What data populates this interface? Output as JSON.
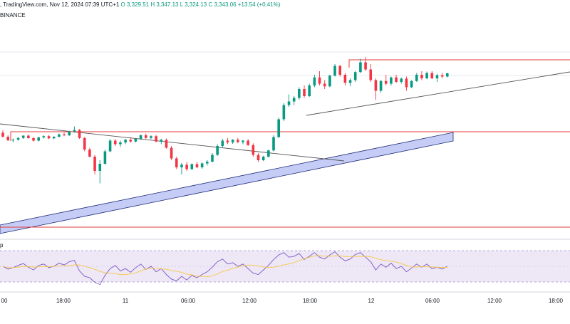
{
  "header": {
    "source": ", TradingView.com, Nov 12, 2024 07:39 UTC+1",
    "open": "O 3,329.51",
    "high": "H 3,347.13",
    "low": "L 3,324.13",
    "close": "C 3,343.06",
    "change": "+13.54 (+0.41%)",
    "exchange": "BINANCE"
  },
  "rsi_label": "p",
  "time_axis": {
    "labels": [
      "00",
      "18:00",
      "11",
      "06:00",
      "12:00",
      "18:00",
      "12",
      "06:00",
      "12:00",
      "18:00"
    ]
  },
  "colors": {
    "up": "#089981",
    "down": "#f23645",
    "zone_line": "#e03b3b",
    "channel_fill": "#c5cdf6",
    "rsi_band": "#ede7f6",
    "rsi_line": "#7e57c2",
    "rsi_ma": "#f7c948",
    "trend_line": "#555555"
  },
  "chart_data": {
    "type": "candlestick",
    "symbol_exchange": "BINANCE",
    "x_labels": [
      "00",
      "18:00",
      "11",
      "06:00",
      "12:00",
      "18:00",
      "12",
      "06:00",
      "12:00",
      "18:00"
    ],
    "candles": [
      [
        0,
        0.535,
        0.548,
        0.508,
        0.512
      ],
      [
        1,
        0.512,
        0.52,
        0.488,
        0.492
      ],
      [
        2,
        0.492,
        0.502,
        0.48,
        0.495
      ],
      [
        3,
        0.495,
        0.51,
        0.49,
        0.505
      ],
      [
        4,
        0.505,
        0.52,
        0.5,
        0.518
      ],
      [
        5,
        0.518,
        0.525,
        0.5,
        0.504
      ],
      [
        6,
        0.504,
        0.51,
        0.485,
        0.49
      ],
      [
        7,
        0.49,
        0.512,
        0.486,
        0.508
      ],
      [
        8,
        0.508,
        0.52,
        0.502,
        0.515
      ],
      [
        9,
        0.515,
        0.522,
        0.498,
        0.503
      ],
      [
        10,
        0.503,
        0.515,
        0.498,
        0.512
      ],
      [
        11,
        0.512,
        0.53,
        0.508,
        0.525
      ],
      [
        12,
        0.525,
        0.535,
        0.515,
        0.52
      ],
      [
        13,
        0.52,
        0.545,
        0.516,
        0.54
      ],
      [
        14,
        0.54,
        0.57,
        0.535,
        0.55
      ],
      [
        15,
        0.55,
        0.555,
        0.5,
        0.505
      ],
      [
        16,
        0.505,
        0.51,
        0.43,
        0.44
      ],
      [
        17,
        0.44,
        0.45,
        0.395,
        0.4
      ],
      [
        18,
        0.4,
        0.41,
        0.3,
        0.32
      ],
      [
        19,
        0.32,
        0.38,
        0.25,
        0.36
      ],
      [
        20,
        0.36,
        0.44,
        0.355,
        0.43
      ],
      [
        21,
        0.43,
        0.5,
        0.425,
        0.49
      ],
      [
        22,
        0.49,
        0.5,
        0.46,
        0.47
      ],
      [
        23,
        0.47,
        0.49,
        0.455,
        0.48
      ],
      [
        24,
        0.48,
        0.5,
        0.47,
        0.495
      ],
      [
        25,
        0.495,
        0.51,
        0.478,
        0.485
      ],
      [
        26,
        0.485,
        0.505,
        0.48,
        0.5
      ],
      [
        27,
        0.5,
        0.525,
        0.495,
        0.52
      ],
      [
        28,
        0.52,
        0.53,
        0.5,
        0.505
      ],
      [
        29,
        0.505,
        0.52,
        0.498,
        0.515
      ],
      [
        30,
        0.515,
        0.522,
        0.48,
        0.485
      ],
      [
        31,
        0.485,
        0.5,
        0.47,
        0.495
      ],
      [
        32,
        0.495,
        0.502,
        0.445,
        0.45
      ],
      [
        33,
        0.45,
        0.46,
        0.38,
        0.39
      ],
      [
        34,
        0.39,
        0.4,
        0.33,
        0.34
      ],
      [
        35,
        0.34,
        0.365,
        0.3,
        0.355
      ],
      [
        36,
        0.355,
        0.37,
        0.32,
        0.33
      ],
      [
        37,
        0.33,
        0.362,
        0.325,
        0.358
      ],
      [
        38,
        0.358,
        0.372,
        0.335,
        0.34
      ],
      [
        39,
        0.34,
        0.368,
        0.332,
        0.362
      ],
      [
        40,
        0.362,
        0.38,
        0.35,
        0.372
      ],
      [
        41,
        0.372,
        0.42,
        0.368,
        0.41
      ],
      [
        42,
        0.41,
        0.47,
        0.405,
        0.46
      ],
      [
        43,
        0.46,
        0.5,
        0.45,
        0.49
      ],
      [
        44,
        0.49,
        0.505,
        0.47,
        0.48
      ],
      [
        45,
        0.48,
        0.498,
        0.472,
        0.495
      ],
      [
        46,
        0.495,
        0.505,
        0.475,
        0.482
      ],
      [
        47,
        0.482,
        0.495,
        0.47,
        0.49
      ],
      [
        48,
        0.49,
        0.5,
        0.46,
        0.465
      ],
      [
        49,
        0.465,
        0.475,
        0.4,
        0.41
      ],
      [
        50,
        0.41,
        0.42,
        0.37,
        0.38
      ],
      [
        51,
        0.38,
        0.405,
        0.375,
        0.4
      ],
      [
        52,
        0.4,
        0.44,
        0.395,
        0.435
      ],
      [
        53,
        0.435,
        0.52,
        0.43,
        0.51
      ],
      [
        54,
        0.51,
        0.62,
        0.505,
        0.61
      ],
      [
        55,
        0.61,
        0.7,
        0.6,
        0.69
      ],
      [
        56,
        0.69,
        0.75,
        0.68,
        0.71
      ],
      [
        57,
        0.71,
        0.74,
        0.69,
        0.73
      ],
      [
        58,
        0.73,
        0.79,
        0.72,
        0.78
      ],
      [
        59,
        0.78,
        0.8,
        0.73,
        0.74
      ],
      [
        60,
        0.74,
        0.81,
        0.735,
        0.8
      ],
      [
        61,
        0.8,
        0.86,
        0.79,
        0.845
      ],
      [
        62,
        0.845,
        0.88,
        0.8,
        0.81
      ],
      [
        63,
        0.81,
        0.83,
        0.78,
        0.795
      ],
      [
        64,
        0.795,
        0.86,
        0.79,
        0.855
      ],
      [
        65,
        0.855,
        0.92,
        0.85,
        0.91
      ],
      [
        66,
        0.91,
        0.915,
        0.85,
        0.86
      ],
      [
        67,
        0.86,
        0.87,
        0.8,
        0.815
      ],
      [
        68,
        0.815,
        0.84,
        0.795,
        0.83
      ],
      [
        69,
        0.83,
        0.88,
        0.82,
        0.875
      ],
      [
        70,
        0.875,
        0.95,
        0.87,
        0.93
      ],
      [
        71,
        0.93,
        0.96,
        0.88,
        0.89
      ],
      [
        72,
        0.89,
        0.92,
        0.82,
        0.83
      ],
      [
        73,
        0.83,
        0.84,
        0.72,
        0.77
      ],
      [
        74,
        0.77,
        0.83,
        0.76,
        0.825
      ],
      [
        75,
        0.825,
        0.86,
        0.8,
        0.81
      ],
      [
        76,
        0.81,
        0.85,
        0.8,
        0.845
      ],
      [
        77,
        0.845,
        0.86,
        0.815,
        0.82
      ],
      [
        78,
        0.82,
        0.845,
        0.81,
        0.838
      ],
      [
        79,
        0.838,
        0.85,
        0.77,
        0.79
      ],
      [
        80,
        0.79,
        0.83,
        0.785,
        0.825
      ],
      [
        81,
        0.825,
        0.87,
        0.82,
        0.86
      ],
      [
        82,
        0.86,
        0.88,
        0.83,
        0.84
      ],
      [
        83,
        0.84,
        0.878,
        0.835,
        0.87
      ],
      [
        84,
        0.87,
        0.88,
        0.835,
        0.84
      ],
      [
        85,
        0.84,
        0.865,
        0.82,
        0.858
      ],
      [
        86,
        0.858,
        0.87,
        0.84,
        0.85
      ],
      [
        87,
        0.85,
        0.872,
        0.846,
        0.868
      ]
    ],
    "rsi": [
      50,
      44,
      47,
      52,
      56,
      48,
      42,
      52,
      55,
      47,
      50,
      57,
      53,
      60,
      63,
      40,
      28,
      25,
      15,
      10,
      30,
      45,
      52,
      40,
      45,
      37,
      47,
      55,
      43,
      50,
      38,
      45,
      32,
      22,
      18,
      28,
      20,
      30,
      25,
      32,
      38,
      48,
      60,
      66,
      55,
      58,
      50,
      55,
      45,
      35,
      32,
      42,
      52,
      65,
      75,
      80,
      70,
      72,
      78,
      65,
      72,
      80,
      70,
      66,
      75,
      82,
      70,
      62,
      66,
      76,
      80,
      70,
      60,
      42,
      55,
      48,
      57,
      45,
      50,
      38,
      46,
      55,
      48,
      55,
      45,
      48,
      44,
      50
    ]
  }
}
